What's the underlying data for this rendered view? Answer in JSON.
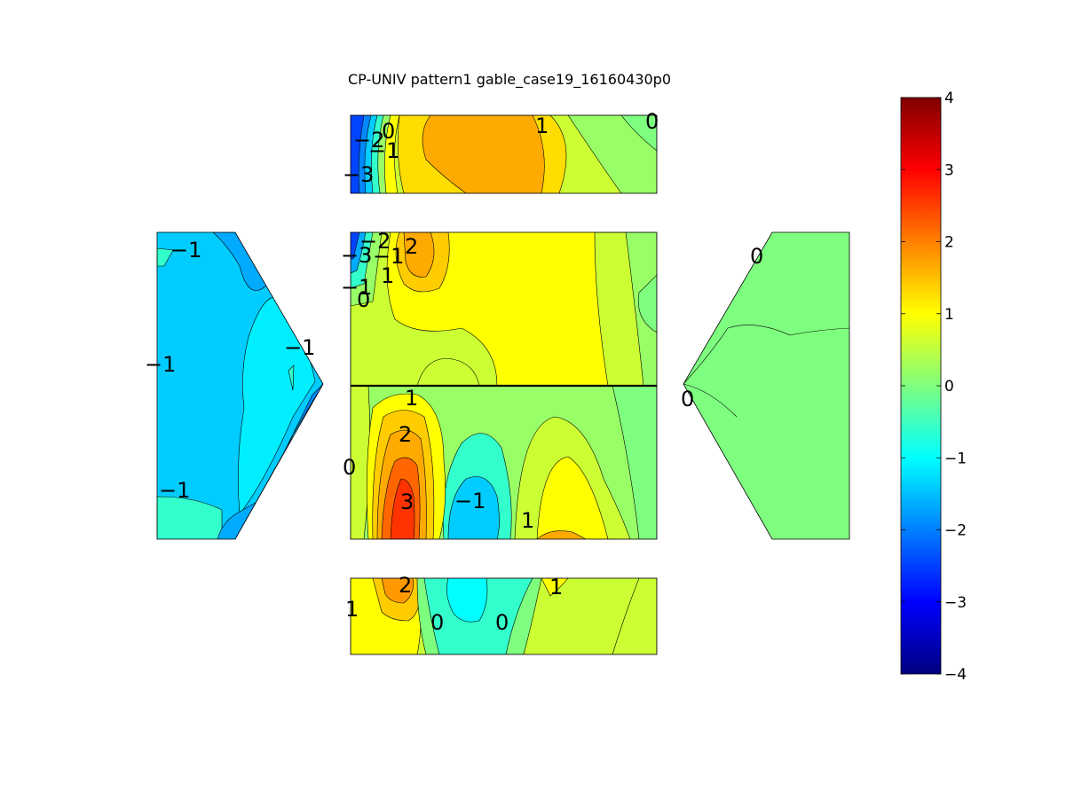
{
  "chart_data": {
    "type": "heatmap",
    "title": "CP-UNIV pattern1 gable_case19_16160430p0",
    "colorbar": {
      "colormap": "jet",
      "range": [
        -4,
        4
      ],
      "ticks": [
        "4",
        "3",
        "2",
        "1",
        "0",
        "−1",
        "−2",
        "−3",
        "−4"
      ]
    },
    "panels": [
      {
        "name": "roof-top-strip",
        "contour_labels": [
          "−2",
          "0",
          "1",
          "0",
          "−1",
          "−3"
        ]
      },
      {
        "name": "wall-upper",
        "contour_labels": [
          "−2",
          "2",
          "−3",
          "−1",
          "1",
          "−1",
          "0"
        ]
      },
      {
        "name": "wall-lower",
        "contour_labels": [
          "1",
          "2",
          "0",
          "3",
          "−1",
          "1"
        ]
      },
      {
        "name": "roof-bottom-strip",
        "contour_labels": [
          "2",
          "1",
          "1",
          "0",
          "0"
        ]
      },
      {
        "name": "gable-left",
        "contour_labels": [
          "−1",
          "−1",
          "−1",
          "−1"
        ]
      },
      {
        "name": "gable-right",
        "contour_labels": [
          "0",
          "0"
        ]
      }
    ]
  }
}
